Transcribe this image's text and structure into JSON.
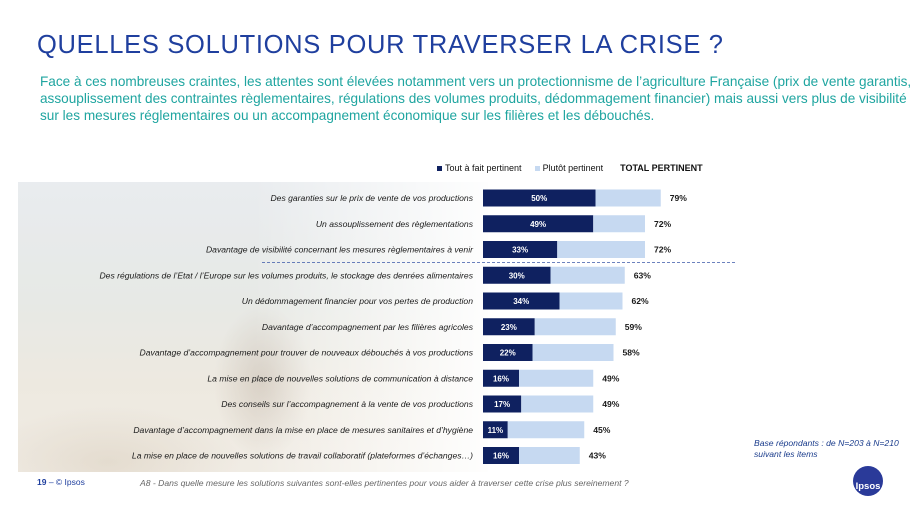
{
  "page": {
    "title": "QUELLES SOLUTIONS POUR TRAVERSER LA CRISE ?",
    "subtitle": "Face à ces nombreuses craintes, les attentes sont élevées notamment vers un protectionnisme de l’agriculture Française (prix de vente garantis, assouplissement des contraintes règlementaires, régulations des volumes produits, dédommagement financier) mais aussi vers plus de visibilité sur les mesures réglementaires ou un accompagnement économique sur les filières et les débouchés.",
    "base_note": "Base répondants : de N=203 à N=210 suivant les items",
    "page_number": "19",
    "copyright": " –  © Ipsos",
    "question": "A8 - Dans quelle mesure les solutions suivantes sont-elles pertinentes pour vous aider à traverser cette crise plus sereinement ?",
    "logo_text": "Ipsos"
  },
  "colors": {
    "dark": "#0f2160",
    "light": "#c6d9f1",
    "title": "#1f3f9e",
    "subtitle": "#1fa5a0"
  },
  "legend": {
    "dark_label": "Tout à fait pertinent",
    "light_label": "Plutôt pertinent",
    "total_label": "TOTAL PERTINENT"
  },
  "chart_data": {
    "type": "bar",
    "orientation": "horizontal",
    "stacked": true,
    "categories": [
      "Des garanties sur le prix de vente de vos productions",
      "Un assouplissement des règlementations",
      "Davantage de visibilité concernant les mesures règlementaires à venir",
      "Des régulations de l’Etat / l’Europe sur les volumes produits, le stockage des denrées alimentaires",
      "Un dédommagement financier pour vos pertes de production",
      "Davantage d’accompagnement par les filières agricoles",
      "Davantage d’accompagnement pour trouver de nouveaux débouchés à vos productions",
      "La mise en place de nouvelles solutions de communication à distance",
      "Des conseils sur l’accompagnement à la vente de vos productions",
      "Davantage d’accompagnement dans la mise en place de mesures sanitaires et d’hygiène",
      "La mise en place de nouvelles solutions de travail collaboratif (plateformes d’échanges…)"
    ],
    "series": [
      {
        "name": "Tout à fait pertinent",
        "values": [
          50,
          49,
          33,
          30,
          34,
          23,
          22,
          16,
          17,
          11,
          16
        ]
      },
      {
        "name": "Plutôt pertinent",
        "values": [
          29,
          23,
          39,
          33,
          28,
          36,
          36,
          33,
          32,
          34,
          27
        ]
      }
    ],
    "totals": [
      79,
      72,
      72,
      63,
      62,
      59,
      58,
      49,
      49,
      45,
      43
    ],
    "value_suffix": "%",
    "legend_position": "top",
    "separator_after_index": 2,
    "grid": false
  }
}
